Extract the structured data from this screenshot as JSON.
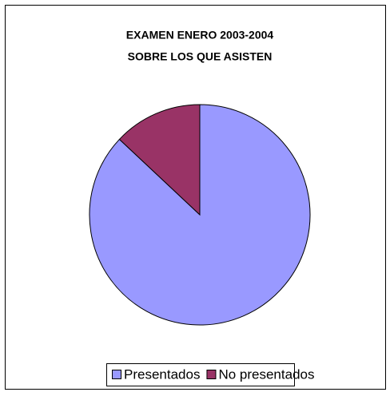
{
  "chart_data": {
    "type": "pie",
    "title": "EXAMEN ENERO 2003-2004",
    "subtitle": "SOBRE LOS QUE ASISTEN",
    "categories": [
      "Presentados",
      "No presentados"
    ],
    "values": [
      87,
      13
    ],
    "colors": [
      "#9999ff",
      "#993366"
    ],
    "legend": "bottom"
  }
}
